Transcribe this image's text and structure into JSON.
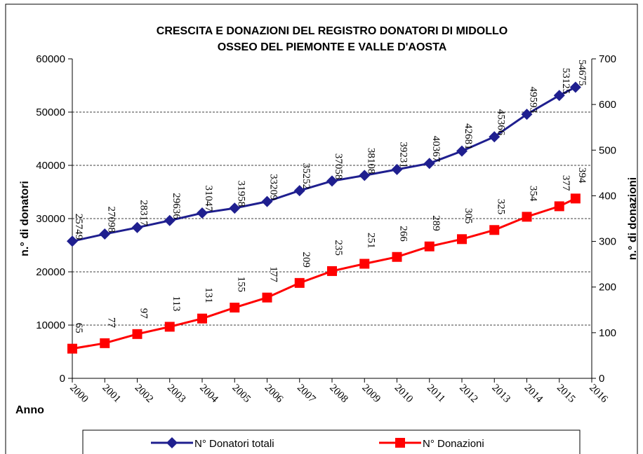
{
  "chart_data": {
    "type": "line",
    "title": [
      "CRESCITA E DONAZIONI DEL REGISTRO DONATORI DI MIDOLLO",
      "OSSEO DEL PIEMONTE E VALLE D'AOSTA"
    ],
    "x_label": "Anno",
    "y_label": "n.° di donatori",
    "y2_label": "n.° di donazioni",
    "x": [
      2000,
      2001,
      2002,
      2003,
      2004,
      2005,
      2006,
      2007,
      2008,
      2009,
      2010,
      2011,
      2012,
      2013,
      2014,
      2015,
      2015.5
    ],
    "xlim": [
      2000,
      2016
    ],
    "xticks": [
      2000,
      2001,
      2002,
      2003,
      2004,
      2005,
      2006,
      2007,
      2008,
      2009,
      2010,
      2011,
      2012,
      2013,
      2014,
      2015,
      2016
    ],
    "ylim": [
      0,
      60000
    ],
    "yticks": [
      0,
      10000,
      20000,
      30000,
      40000,
      50000,
      60000
    ],
    "y2lim": [
      0,
      700
    ],
    "y2ticks": [
      0,
      100,
      200,
      300,
      400,
      500,
      600,
      700
    ],
    "grid": true,
    "legend": "bottom",
    "series": [
      {
        "name": "N° Donatori totali",
        "color": "#1f1f8f",
        "marker": "diamond",
        "values": [
          25749,
          27098,
          28317,
          29636,
          31047,
          31958,
          33209,
          35252,
          37058,
          38108,
          39231,
          40367,
          42681,
          45366,
          49593,
          53125,
          54675
        ]
      },
      {
        "name": "N° Donazioni",
        "color": "#ff0000",
        "marker": "square",
        "axis": "y2",
        "values": [
          65,
          77,
          97,
          113,
          131,
          155,
          177,
          209,
          235,
          251,
          266,
          289,
          305,
          325,
          354,
          377,
          394
        ]
      }
    ]
  }
}
